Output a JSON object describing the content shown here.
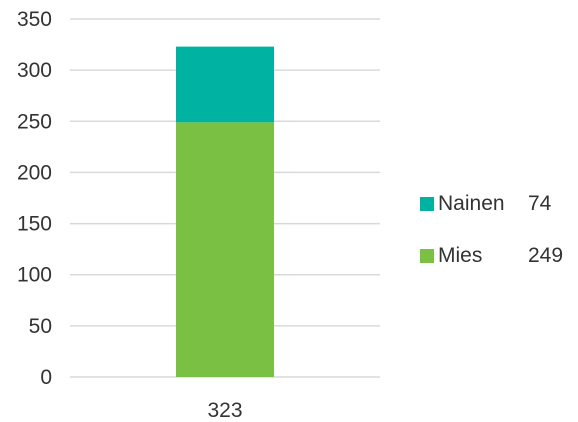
{
  "chart_data": {
    "type": "bar",
    "stacked": true,
    "categories": [
      "323"
    ],
    "series": [
      {
        "name": "Mies",
        "values": [
          249
        ],
        "legend_value": "249",
        "color": "#7ac143"
      },
      {
        "name": "Nainen",
        "values": [
          74
        ],
        "legend_value": "74",
        "color": "#00b2a2"
      }
    ],
    "yticks": [
      "0",
      "50",
      "100",
      "150",
      "200",
      "250",
      "300",
      "350"
    ],
    "ylim": [
      0,
      350
    ],
    "grid": true,
    "legend_position": "right"
  }
}
